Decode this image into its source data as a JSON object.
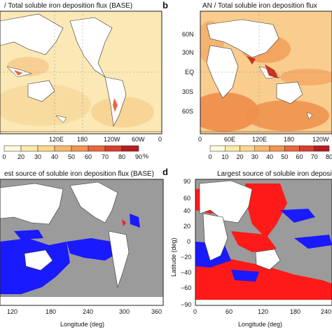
{
  "panels": {
    "a": {
      "title": "/ Total soluble iron deposition flux (BASE)"
    },
    "b": {
      "letter": "b",
      "title": "AN / Total soluble iron deposition flux"
    },
    "c": {
      "title": "est source of soluble iron deposition flux (BASE)"
    },
    "d": {
      "letter": "d",
      "title": "Largest source of soluble iron depositio"
    }
  },
  "axes": {
    "a_lon_ticks": [
      "120E",
      "180",
      "120W",
      "60W",
      "0"
    ],
    "b_lat_ticks": [
      "60N",
      "30N",
      "EQ",
      "30S",
      "60S"
    ],
    "b_lon_ticks": [
      "0",
      "60E",
      "120E",
      "180",
      "120W"
    ],
    "c_lon_ticks": [
      "120",
      "180",
      "240",
      "300",
      "360"
    ],
    "c_xlabel": "Longitude (deg)",
    "d_lat_ticks": [
      "90",
      "60",
      "40",
      "20",
      "0",
      "−20",
      "−40",
      "−60",
      "−90"
    ],
    "d_lon_ticks": [
      "0",
      "60",
      "120",
      "180",
      "240"
    ],
    "d_xlabel": "Longitude (deg)",
    "d_ylabel": "Latitude (deg)"
  },
  "colorbars": {
    "a": {
      "labels": [
        "0",
        "20",
        "30",
        "40",
        "50",
        "60",
        "70",
        "80",
        "90"
      ],
      "unit": "%",
      "colors": [
        "#fff8dc",
        "#fde9a8",
        "#fbd88a",
        "#f8b86a",
        "#f39450",
        "#e8683c",
        "#d6402a",
        "#b71c1c"
      ]
    },
    "b": {
      "labels": [
        "0",
        "10",
        "20",
        "30",
        "40",
        "50",
        "60",
        "70",
        "80"
      ],
      "colors": [
        "#fff8dc",
        "#fde9a8",
        "#fbd88a",
        "#f8b86a",
        "#f39450",
        "#e8683c",
        "#d6402a",
        "#b71c1c"
      ]
    }
  },
  "colors": {
    "map_a_base": "#fbe8b5",
    "map_b_base": "#f7b673",
    "land": "#ffffff",
    "ocean_c": "#9b9b9b",
    "source_blue": "#1a1aff",
    "source_red": "#ff1a1a"
  }
}
